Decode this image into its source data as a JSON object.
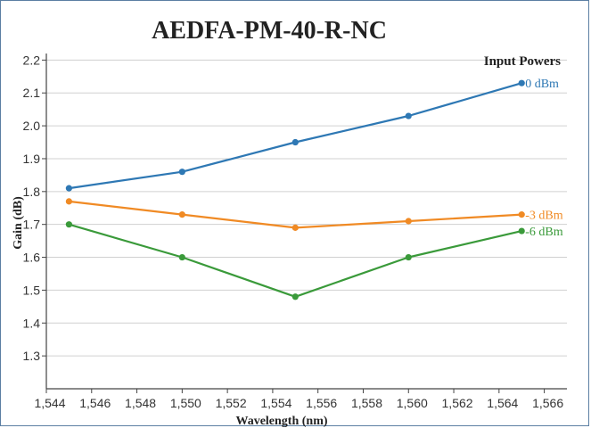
{
  "chart_data": {
    "type": "line",
    "title": "AEDFA-PM-40-R-NC",
    "xlabel": "Wavelength (nm)",
    "ylabel": "Gain (dB)",
    "legend_title": "Input Powers",
    "legend_placement": "end-of-line labels, right",
    "grid": "horizontal",
    "xlim": [
      1544,
      1567
    ],
    "ylim": [
      1.2,
      2.22
    ],
    "x_ticks": [
      1544,
      1546,
      1548,
      1550,
      1552,
      1554,
      1556,
      1558,
      1560,
      1562,
      1564,
      1566
    ],
    "x_tick_labels": [
      "1,544",
      "1,546",
      "1,548",
      "1,550",
      "1,552",
      "1,554",
      "1,556",
      "1,558",
      "1,560",
      "1,562",
      "1,564",
      "1,566"
    ],
    "y_ticks": [
      1.3,
      1.4,
      1.5,
      1.6,
      1.7,
      1.8,
      1.9,
      2.0,
      2.1,
      2.2
    ],
    "y_tick_labels": [
      "1.3",
      "1.4",
      "1.5",
      "1.6",
      "1.7",
      "1.8",
      "1.9",
      "2.0",
      "2.1",
      "2.2"
    ],
    "x": [
      1545,
      1550,
      1555,
      1560,
      1565
    ],
    "series": [
      {
        "name": "0 dBm",
        "color": "#2e78b4",
        "values": [
          1.81,
          1.86,
          1.95,
          2.03,
          2.13
        ]
      },
      {
        "name": "-3 dBm",
        "color": "#f08a24",
        "values": [
          1.77,
          1.73,
          1.69,
          1.71,
          1.73
        ]
      },
      {
        "name": "-6 dBm",
        "color": "#3a9a3a",
        "values": [
          1.7,
          1.6,
          1.48,
          1.6,
          1.68
        ]
      }
    ]
  }
}
